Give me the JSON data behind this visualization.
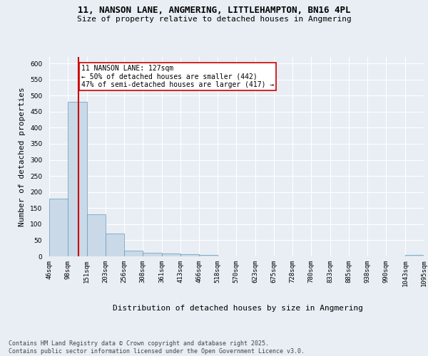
{
  "title_line1": "11, NANSON LANE, ANGMERING, LITTLEHAMPTON, BN16 4PL",
  "title_line2": "Size of property relative to detached houses in Angmering",
  "xlabel": "Distribution of detached houses by size in Angmering",
  "ylabel": "Number of detached properties",
  "bin_edges": [
    46,
    98,
    151,
    203,
    256,
    308,
    361,
    413,
    466,
    518,
    570,
    623,
    675,
    728,
    780,
    833,
    885,
    938,
    990,
    1043,
    1095
  ],
  "bar_heights": [
    180,
    480,
    130,
    70,
    18,
    12,
    8,
    6,
    4,
    1,
    0,
    0,
    0,
    0,
    0,
    0,
    0,
    0,
    0,
    5
  ],
  "bar_color": "#c9d9e8",
  "bar_edgecolor": "#6699bb",
  "property_size": 127,
  "vline_color": "#cc0000",
  "annotation_text": "11 NANSON LANE: 127sqm\n← 50% of detached houses are smaller (442)\n47% of semi-detached houses are larger (417) →",
  "annotation_box_edgecolor": "#cc0000",
  "annotation_box_facecolor": "#ffffff",
  "ylim": [
    0,
    620
  ],
  "yticks": [
    0,
    50,
    100,
    150,
    200,
    250,
    300,
    350,
    400,
    450,
    500,
    550,
    600
  ],
  "background_color": "#e8eef4",
  "axes_facecolor": "#e8eef4",
  "grid_color": "#ffffff",
  "footnote": "Contains HM Land Registry data © Crown copyright and database right 2025.\nContains public sector information licensed under the Open Government Licence v3.0.",
  "title_fontsize": 9,
  "subtitle_fontsize": 8,
  "xlabel_fontsize": 8,
  "ylabel_fontsize": 8,
  "tick_fontsize": 6.5,
  "annotation_fontsize": 7,
  "footnote_fontsize": 6
}
